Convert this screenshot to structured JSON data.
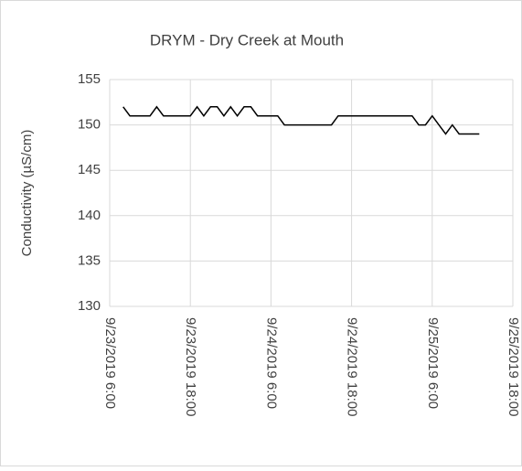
{
  "chart_data": {
    "type": "line",
    "title": "DRYM - Dry Creek at Mouth",
    "ylabel": "Conductivity (µS/cm)",
    "x": [
      "9/23/2019 8:00",
      "9/23/2019 9:00",
      "9/23/2019 10:00",
      "9/23/2019 11:00",
      "9/23/2019 12:00",
      "9/23/2019 13:00",
      "9/23/2019 14:00",
      "9/23/2019 15:00",
      "9/23/2019 16:00",
      "9/23/2019 17:00",
      "9/23/2019 18:00",
      "9/23/2019 19:00",
      "9/23/2019 20:00",
      "9/23/2019 21:00",
      "9/23/2019 22:00",
      "9/23/2019 23:00",
      "9/24/2019 0:00",
      "9/24/2019 1:00",
      "9/24/2019 2:00",
      "9/24/2019 3:00",
      "9/24/2019 4:00",
      "9/24/2019 5:00",
      "9/24/2019 6:00",
      "9/24/2019 7:00",
      "9/24/2019 8:00",
      "9/24/2019 9:00",
      "9/24/2019 10:00",
      "9/24/2019 11:00",
      "9/24/2019 12:00",
      "9/24/2019 13:00",
      "9/24/2019 14:00",
      "9/24/2019 15:00",
      "9/24/2019 16:00",
      "9/24/2019 17:00",
      "9/24/2019 18:00",
      "9/24/2019 19:00",
      "9/24/2019 20:00",
      "9/24/2019 21:00",
      "9/24/2019 22:00",
      "9/24/2019 23:00",
      "9/25/2019 0:00",
      "9/25/2019 1:00",
      "9/25/2019 2:00",
      "9/25/2019 3:00",
      "9/25/2019 4:00",
      "9/25/2019 5:00",
      "9/25/2019 6:00",
      "9/25/2019 7:00",
      "9/25/2019 8:00",
      "9/25/2019 9:00",
      "9/25/2019 10:00",
      "9/25/2019 11:00",
      "9/25/2019 12:00",
      "9/25/2019 13:00"
    ],
    "series": [
      {
        "name": "Conductivity",
        "color": "#000000",
        "values": [
          152,
          151,
          151,
          151,
          151,
          152,
          151,
          151,
          151,
          151,
          151,
          152,
          151,
          152,
          152,
          151,
          152,
          151,
          152,
          152,
          151,
          151,
          151,
          151,
          150,
          150,
          150,
          150,
          150,
          150,
          150,
          150,
          151,
          151,
          151,
          151,
          151,
          151,
          151,
          151,
          151,
          151,
          151,
          151,
          150,
          150,
          151,
          150,
          149,
          150,
          149,
          149,
          149,
          149
        ]
      }
    ],
    "xlim": [
      "9/23/2019 6:00",
      "9/25/2019 18:00"
    ],
    "xticks": [
      "9/23/2019 6:00",
      "9/23/2019 18:00",
      "9/24/2019 6:00",
      "9/24/2019 18:00",
      "9/25/2019 6:00",
      "9/25/2019 18:00"
    ],
    "ylim": [
      130,
      155
    ],
    "yticks": [
      130,
      135,
      140,
      145,
      150,
      155
    ],
    "grid": true
  }
}
